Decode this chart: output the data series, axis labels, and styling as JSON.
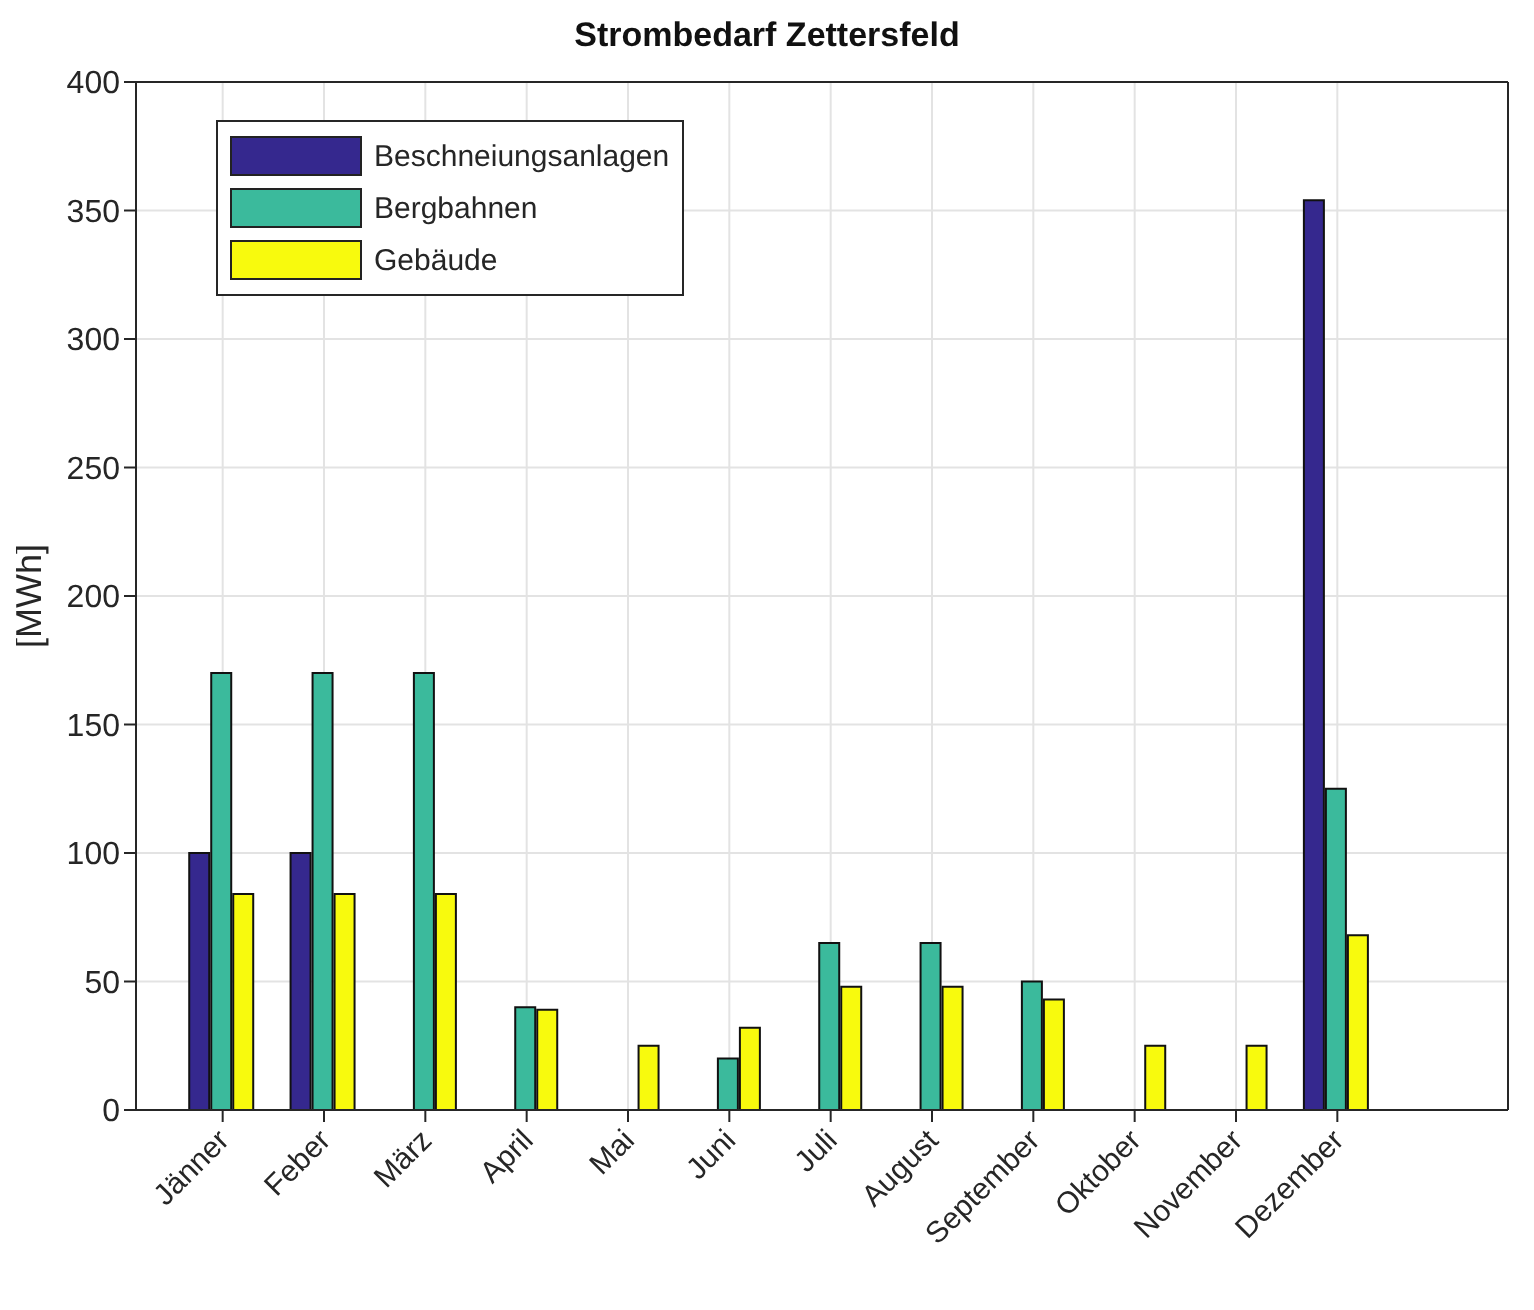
{
  "chart_data": {
    "type": "bar",
    "title": "Strombedarf Zettersfeld",
    "ylabel": "[MWh]",
    "categories": [
      "Jänner",
      "Feber",
      "März",
      "April",
      "Mai",
      "Juni",
      "Juli",
      "August",
      "September",
      "Oktober",
      "November",
      "Dezember"
    ],
    "series": [
      {
        "name": "Beschneiungsanlagen",
        "color": "#35288e",
        "values": [
          100,
          100,
          0,
          0,
          0,
          0,
          0,
          0,
          0,
          0,
          0,
          354
        ]
      },
      {
        "name": "Bergbahnen",
        "color": "#3bba9c",
        "values": [
          170,
          170,
          170,
          40,
          0,
          20,
          65,
          65,
          50,
          0,
          0,
          125
        ]
      },
      {
        "name": "Gebäude",
        "color": "#f8fa0d",
        "values": [
          84,
          84,
          84,
          39,
          25,
          32,
          48,
          48,
          43,
          25,
          25,
          68
        ]
      }
    ],
    "ylim": [
      0,
      400
    ],
    "yticks": [
      0,
      50,
      100,
      150,
      200,
      250,
      300,
      350,
      400
    ],
    "grid": true,
    "legend": "top left"
  }
}
